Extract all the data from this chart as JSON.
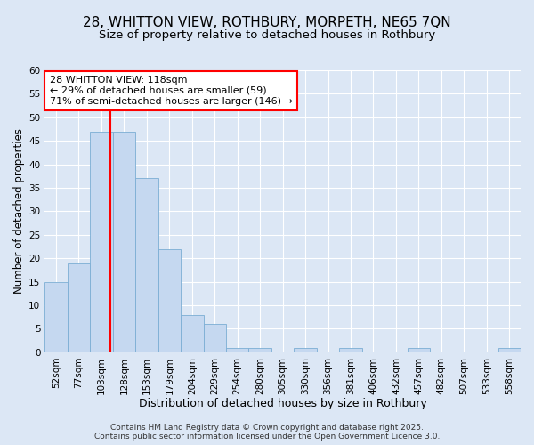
{
  "title_line1": "28, WHITTON VIEW, ROTHBURY, MORPETH, NE65 7QN",
  "title_line2": "Size of property relative to detached houses in Rothbury",
  "xlabel": "Distribution of detached houses by size in Rothbury",
  "ylabel": "Number of detached properties",
  "bar_labels": [
    "52sqm",
    "77sqm",
    "103sqm",
    "128sqm",
    "153sqm",
    "179sqm",
    "204sqm",
    "229sqm",
    "254sqm",
    "280sqm",
    "305sqm",
    "330sqm",
    "356sqm",
    "381sqm",
    "406sqm",
    "432sqm",
    "457sqm",
    "482sqm",
    "507sqm",
    "533sqm",
    "558sqm"
  ],
  "bar_values": [
    15,
    19,
    47,
    47,
    37,
    22,
    8,
    6,
    1,
    1,
    0,
    1,
    0,
    1,
    0,
    0,
    1,
    0,
    0,
    0,
    1
  ],
  "bar_color": "#c5d8f0",
  "bar_edgecolor": "#7badd4",
  "bar_width": 1.0,
  "vline_x": 2.4,
  "vline_color": "red",
  "annotation_text": "28 WHITTON VIEW: 118sqm\n← 29% of detached houses are smaller (59)\n71% of semi-detached houses are larger (146) →",
  "annotation_box_facecolor": "white",
  "annotation_box_edgecolor": "red",
  "ylim": [
    0,
    60
  ],
  "yticks": [
    0,
    5,
    10,
    15,
    20,
    25,
    30,
    35,
    40,
    45,
    50,
    55,
    60
  ],
  "background_color": "#dce7f5",
  "footer_text": "Contains HM Land Registry data © Crown copyright and database right 2025.\nContains public sector information licensed under the Open Government Licence 3.0.",
  "title_fontsize": 11,
  "subtitle_fontsize": 9.5,
  "xlabel_fontsize": 9,
  "ylabel_fontsize": 8.5,
  "tick_fontsize": 7.5,
  "annotation_fontsize": 8,
  "footer_fontsize": 6.5,
  "grid_color": "#ffffff"
}
